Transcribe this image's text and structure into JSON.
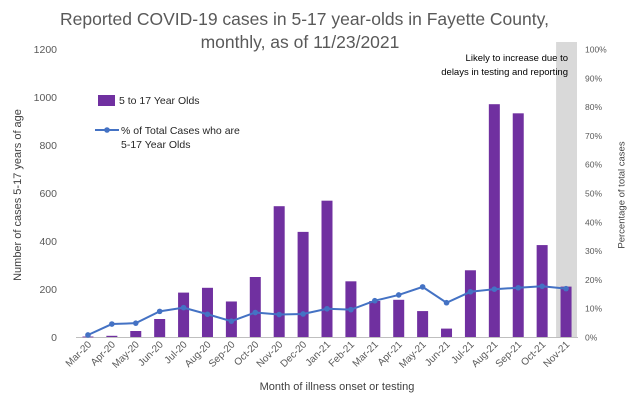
{
  "title": [
    "Reported COVID-19 cases in 5-17 year-olds in Fayette County,",
    "monthly, as of 11/23/2021"
  ],
  "annotation": "Likely to increase due to delays in testing and reporting",
  "colors": {
    "bars": "#7030a0",
    "line": "#4472c4",
    "shade": "#d9d9d9",
    "grid": "#e0e0e0"
  },
  "chart_data": {
    "type": "bar",
    "categories": [
      "Mar-20",
      "Apr-20",
      "May-20",
      "Jun-20",
      "Jul-20",
      "Aug-20",
      "Sep-20",
      "Oct-20",
      "Nov-20",
      "Dec-20",
      "Jan-21",
      "Feb-21",
      "Mar-21",
      "Apr-21",
      "May-21",
      "Jun-21",
      "Jul-21",
      "Aug-21",
      "Sep-21",
      "Oct-21",
      "Nov-21"
    ],
    "series": [
      {
        "name": "5 to 17 Year Olds",
        "type": "bar",
        "axis": "left",
        "values": [
          2,
          5,
          25,
          75,
          185,
          205,
          148,
          250,
          545,
          438,
          568,
          232,
          150,
          155,
          108,
          35,
          278,
          970,
          932,
          383,
          210
        ]
      },
      {
        "name": "% of Total Cases who are 5-17 Year Olds",
        "type": "line",
        "axis": "right",
        "values": [
          0.7,
          4.5,
          4.8,
          8.9,
          10.2,
          7.9,
          5.5,
          8.5,
          7.8,
          8.0,
          9.8,
          9.5,
          12.6,
          14.6,
          17.4,
          11.9,
          15.7,
          16.6,
          17.1,
          17.6,
          16.8
        ]
      }
    ],
    "ylabel": "Number of cases 5-17 years of age",
    "y2label": "Percentage of total cases",
    "xlabel": "Month of illness onset or testing",
    "ylim": [
      0,
      1200
    ],
    "y2lim": [
      0,
      100
    ],
    "yticks": [
      "0",
      "200",
      "400",
      "600",
      "800",
      "1000",
      "1200"
    ],
    "y2ticks": [
      "0%",
      "10%",
      "20%",
      "30%",
      "40%",
      "50%",
      "60%",
      "70%",
      "80%",
      "90%",
      "100%"
    ],
    "shaded_category": "Nov-21",
    "legend_position": "top-left",
    "grid": false
  }
}
